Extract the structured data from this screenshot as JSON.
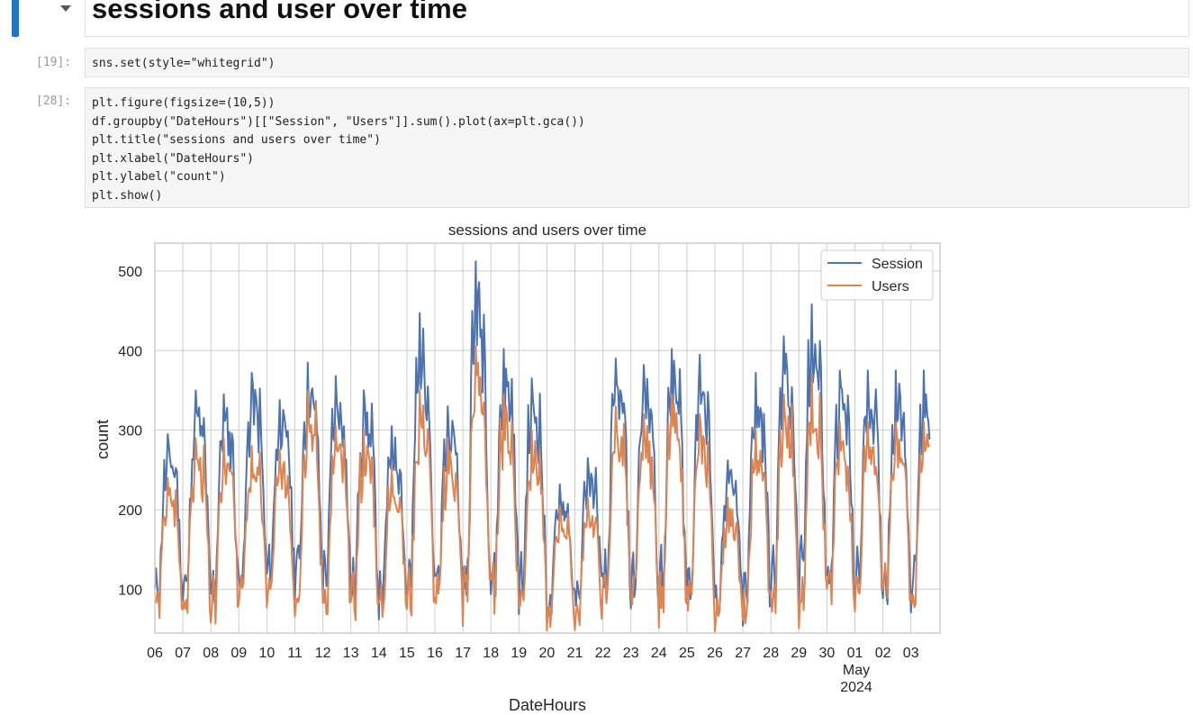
{
  "markdown": {
    "heading": "sessions and user over time"
  },
  "cells": [
    {
      "prompt": "[19]:",
      "lines": [
        "sns.set(style=\"whitegrid\")"
      ]
    },
    {
      "prompt": "[28]:",
      "lines": [
        "plt.figure(figsize=(10,5))",
        "df.groupby(\"DateHours\")[[\"Session\", \"Users\"]].sum().plot(ax=plt.gca())",
        "plt.title(\"sessions and users over time\")",
        "plt.xlabel(\"DateHours\")",
        "plt.ylabel(\"count\")",
        "plt.show()"
      ]
    }
  ],
  "chart_data": {
    "type": "line",
    "title": "sessions and users over time",
    "xlabel": "DateHours",
    "ylabel": "count",
    "ylim": [
      45,
      535
    ],
    "yticks": [
      100,
      200,
      300,
      400,
      500
    ],
    "xticks": [
      "06",
      "07",
      "08",
      "09",
      "10",
      "11",
      "12",
      "13",
      "14",
      "15",
      "16",
      "17",
      "18",
      "19",
      "20",
      "21",
      "22",
      "23",
      "24",
      "25",
      "26",
      "27",
      "28",
      "29",
      "30",
      "01",
      "02",
      "03"
    ],
    "xtick_secondary": [
      "May",
      "2024"
    ],
    "grid": true,
    "legend": "upper right",
    "x_unit": "day offset from Apr 06 2024",
    "x_range": [
      0,
      27.7
    ],
    "series": [
      {
        "name": "Session",
        "color": "#4c72b0",
        "daily_peak": [
          295,
          350,
          345,
          372,
          338,
          385,
          368,
          350,
          305,
          447,
          330,
          512,
          402,
          365,
          232,
          265,
          390,
          382,
          402,
          395,
          262,
          372,
          418,
          458,
          375
        ],
        "daily_min": [
          85,
          78,
          75,
          100,
          105,
          105,
          100,
          80,
          75,
          80,
          85,
          82,
          90,
          85,
          65,
          70,
          82,
          85,
          82,
          80,
          65,
          65,
          80,
          80,
          90
        ]
      },
      {
        "name": "Users",
        "color": "#dd8452",
        "daily_peak": [
          240,
          290,
          290,
          280,
          275,
          350,
          305,
          300,
          255,
          350,
          290,
          405,
          345,
          300,
          205,
          215,
          330,
          320,
          345,
          320,
          215,
          300,
          345,
          370,
          310
        ],
        "daily_min": [
          68,
          68,
          65,
          82,
          82,
          75,
          72,
          68,
          62,
          70,
          70,
          68,
          75,
          68,
          55,
          55,
          68,
          70,
          70,
          65,
          50,
          48,
          65,
          68,
          78
        ]
      }
    ]
  }
}
